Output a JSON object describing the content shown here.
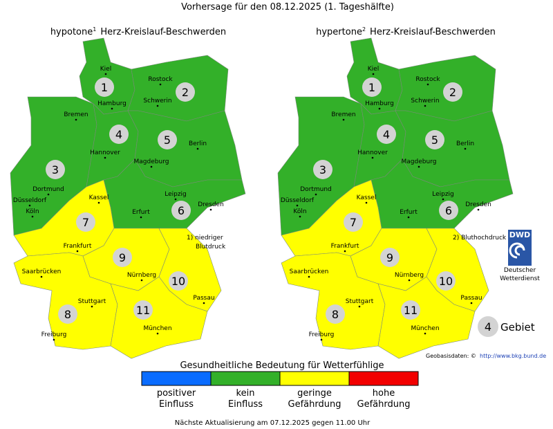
{
  "header": {
    "title": "Vorhersage für den 08.12.2025 (1. Tageshälfte)"
  },
  "maps": [
    {
      "title": "hypotone",
      "superscript": "1",
      "title_rest": "Herz-Kreislauf-Beschwerden",
      "footnote": [
        "1) niedriger",
        "Blutdruck"
      ],
      "region_levels": [
        1,
        1,
        1,
        1,
        1,
        1,
        2,
        2,
        2,
        2,
        2
      ]
    },
    {
      "title": "hypertone",
      "superscript": "2",
      "title_rest": "Herz-Kreislauf-Beschwerden",
      "footnote": [
        "2) Bluthochdruck"
      ],
      "region_levels": [
        1,
        1,
        1,
        1,
        1,
        1,
        2,
        2,
        2,
        2,
        2
      ]
    }
  ],
  "regions": [
    "1",
    "2",
    "3",
    "4",
    "5",
    "6",
    "7",
    "8",
    "9",
    "10",
    "11"
  ],
  "cities": [
    "Kiel",
    "Rostock",
    "Hamburg",
    "Schwerin",
    "Bremen",
    "Hannover",
    "Berlin",
    "Magdeburg",
    "Dortmund",
    "Düsseldorf",
    "Kassel",
    "Leipzig",
    "Köln",
    "Dresden",
    "Erfurt",
    "Frankfurt",
    "Saarbrücken",
    "Nürnberg",
    "Passau",
    "Stuttgart",
    "München",
    "Freiburg"
  ],
  "legend": {
    "title": "Gesundheitliche Bedeutung für Wetterfühlige",
    "items": [
      {
        "color": "#0a6cff",
        "label": [
          "positiver",
          "Einfluss"
        ]
      },
      {
        "color": "#33b029",
        "label": [
          "kein",
          "Einfluss"
        ]
      },
      {
        "color": "#ffff00",
        "label": [
          "geringe",
          "Gefährdung"
        ]
      },
      {
        "color": "#f20000",
        "label": [
          "hohe",
          "Gefährdung"
        ]
      }
    ]
  },
  "key": {
    "number": "4",
    "label": "Gebiet"
  },
  "logo": {
    "name": "DWD",
    "lines": [
      "Deutscher",
      "Wetterdienst"
    ]
  },
  "source": {
    "label": "Geobasisdaten: ©",
    "url": "http://www.bkg.bund.de"
  },
  "footer": "Nächste Aktualisierung am 07.12.2025 gegen 11.00 Uhr"
}
